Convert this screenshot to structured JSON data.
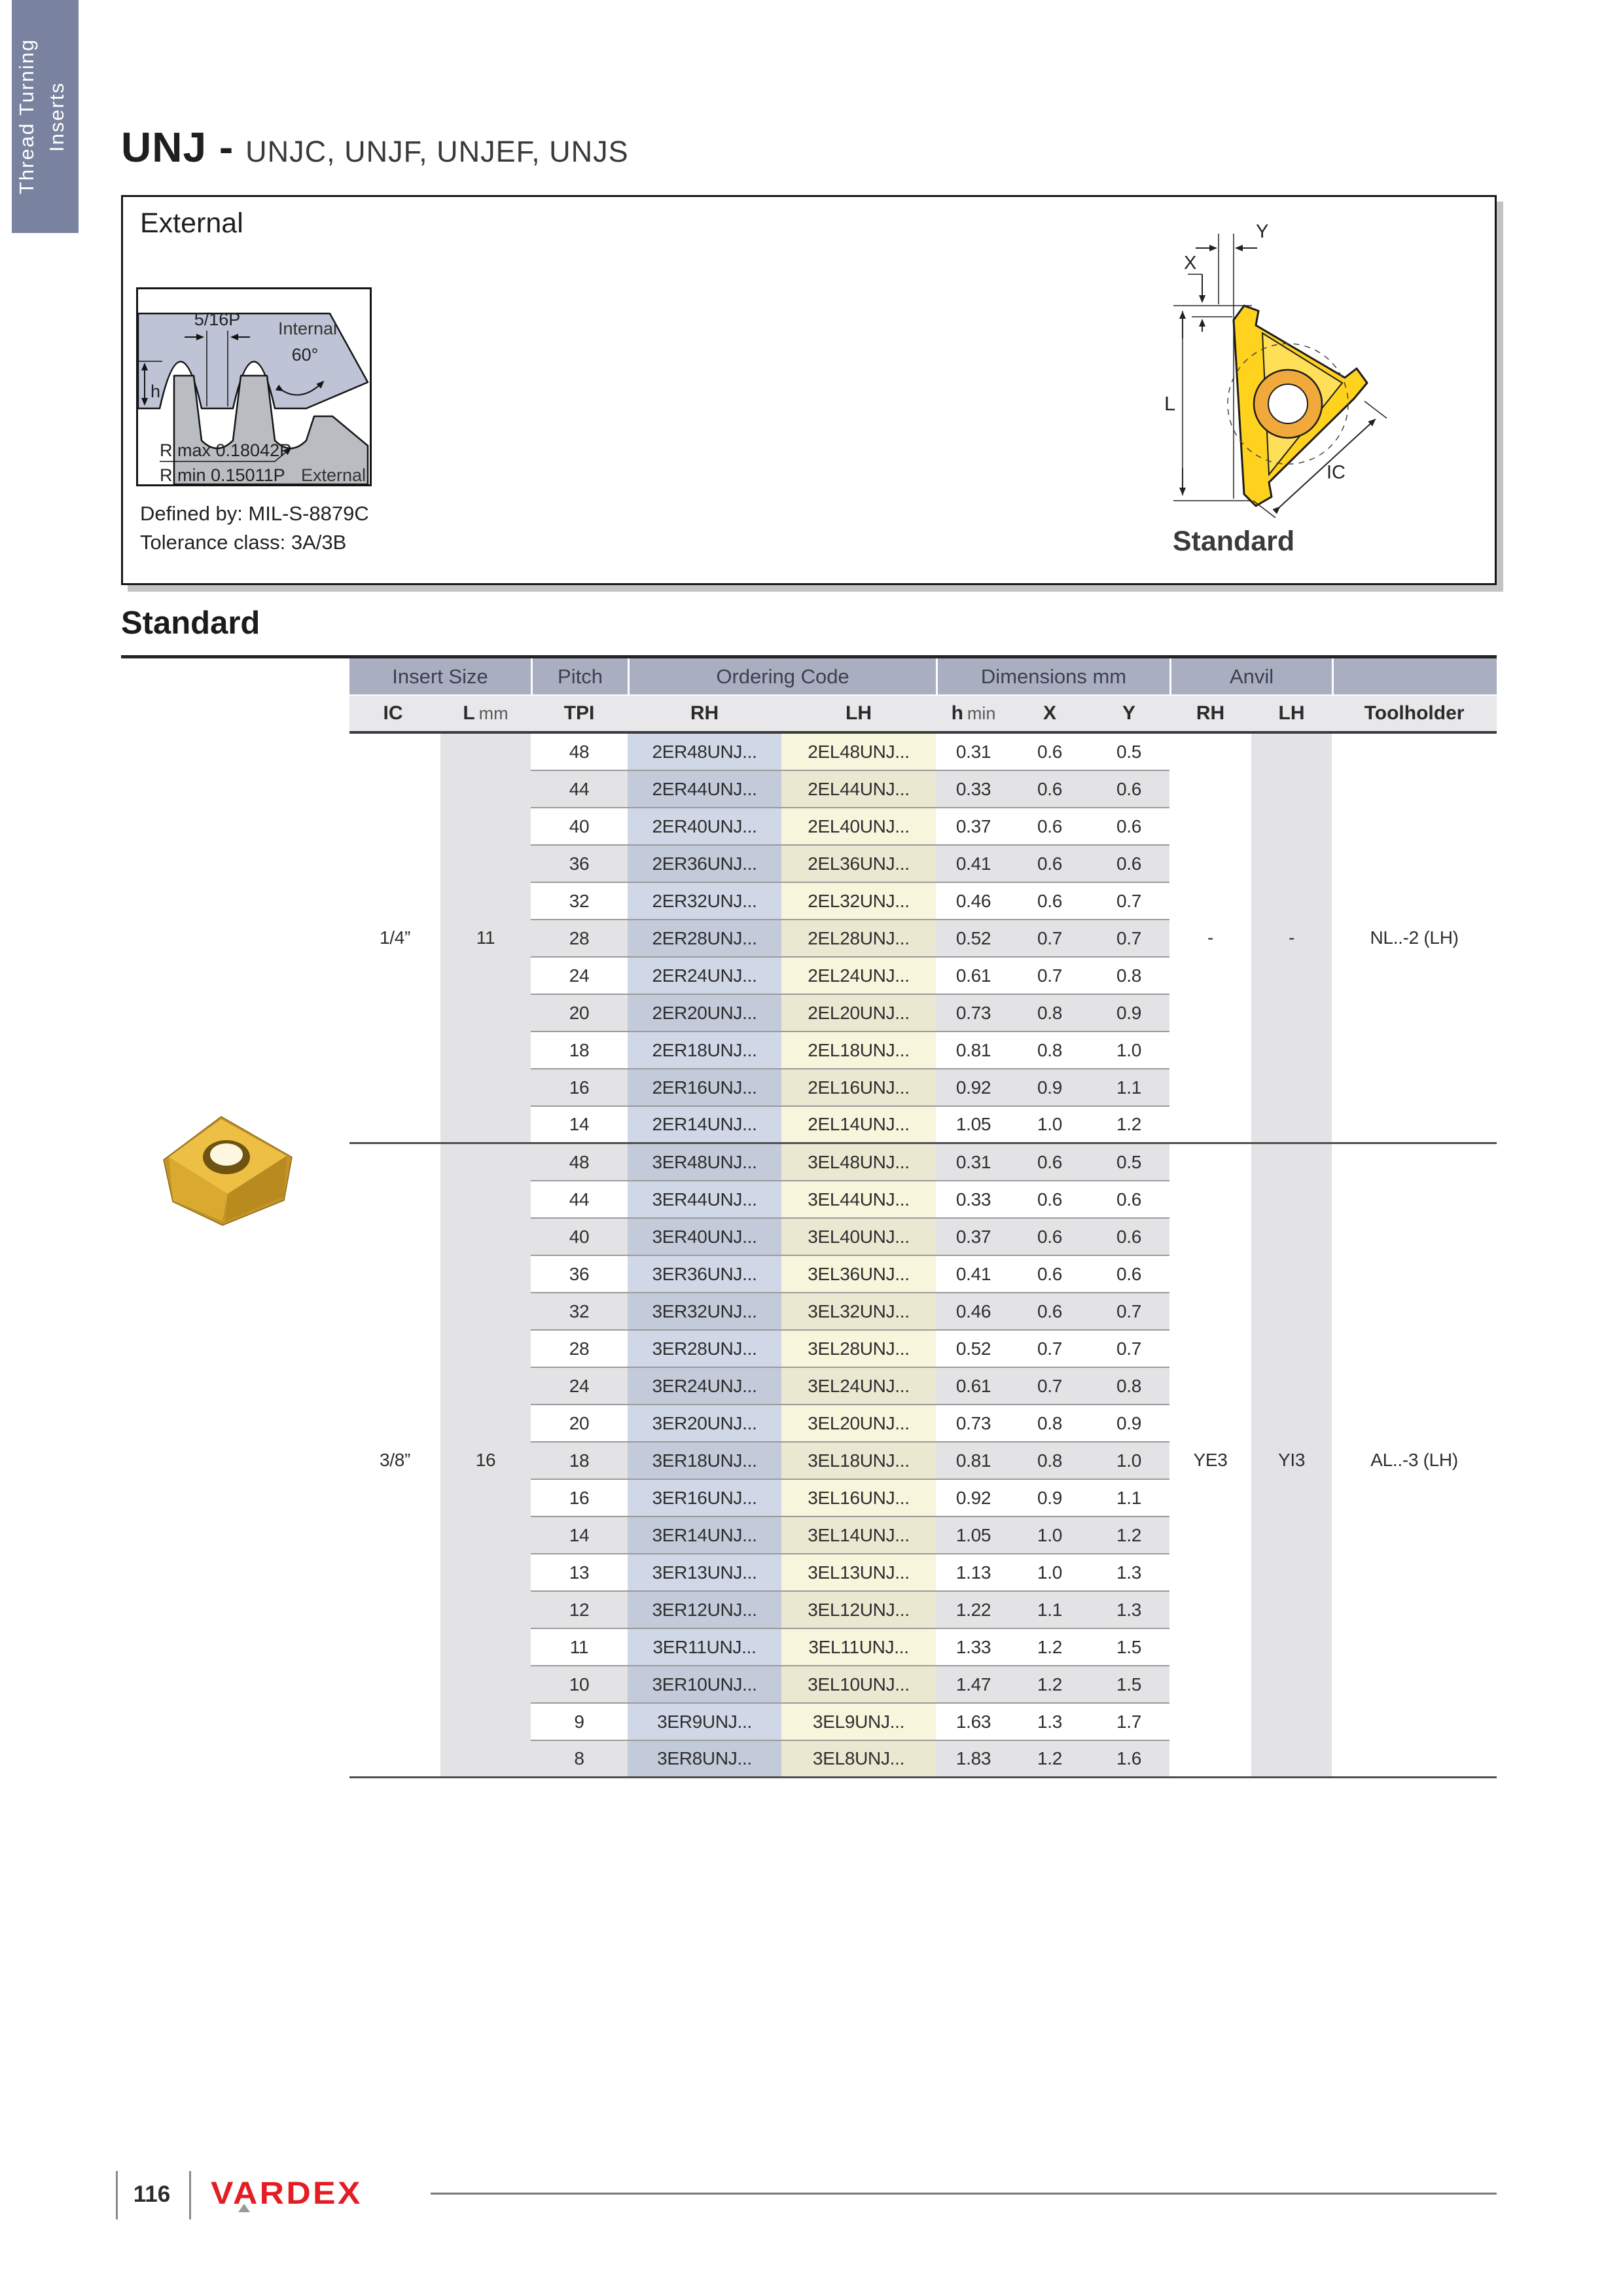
{
  "sidebar": {
    "line1": "Thread Turning",
    "line2": "Inserts"
  },
  "title": {
    "main": "UNJ -",
    "sub": "UNJC, UNJF, UNJEF, UNJS"
  },
  "external_box": {
    "label": "External",
    "defined_by": "Defined by: MIL-S-8879C",
    "tolerance_class": "Tolerance class: 3A/3B",
    "thread_diagram": {
      "pitch": "5/16P",
      "internal": "Internal",
      "angle": "60°",
      "height": "h",
      "r_max": "R max 0.18042P",
      "r_min": "R min 0.15011P",
      "external": "External"
    },
    "insert_diagram": {
      "dim_x": "X",
      "dim_y": "Y",
      "dim_l": "L",
      "dim_ic": "IC",
      "caption": "Standard"
    }
  },
  "section": {
    "title": "Standard"
  },
  "table": {
    "band": [
      {
        "label": "Insert Size"
      },
      {
        "label": "Pitch"
      },
      {
        "label": "Ordering Code"
      },
      {
        "label": "Dimensions mm"
      },
      {
        "label": "Anvil"
      },
      {
        "label": ""
      }
    ],
    "columns": [
      {
        "strong": "IC",
        "light": ""
      },
      {
        "strong": "L",
        "light": "mm"
      },
      {
        "strong": "TPI",
        "light": ""
      },
      {
        "strong": "RH",
        "light": ""
      },
      {
        "strong": "LH",
        "light": ""
      },
      {
        "strong": "h",
        "light": "min"
      },
      {
        "strong": "X",
        "light": ""
      },
      {
        "strong": "Y",
        "light": ""
      },
      {
        "strong": "RH",
        "light": ""
      },
      {
        "strong": "LH",
        "light": ""
      },
      {
        "strong": "Toolholder",
        "light": ""
      }
    ],
    "groups": [
      {
        "ic": "1/4”",
        "l_mm": "11",
        "anvil_rh": "-",
        "anvil_lh": "-",
        "toolholder": "NL..-2 (LH)",
        "rows": [
          {
            "tpi": "48",
            "rh": "2ER48UNJ...",
            "lh": "2EL48UNJ...",
            "h_min": "0.31",
            "x": "0.6",
            "y": "0.5"
          },
          {
            "tpi": "44",
            "rh": "2ER44UNJ...",
            "lh": "2EL44UNJ...",
            "h_min": "0.33",
            "x": "0.6",
            "y": "0.6"
          },
          {
            "tpi": "40",
            "rh": "2ER40UNJ...",
            "lh": "2EL40UNJ...",
            "h_min": "0.37",
            "x": "0.6",
            "y": "0.6"
          },
          {
            "tpi": "36",
            "rh": "2ER36UNJ...",
            "lh": "2EL36UNJ...",
            "h_min": "0.41",
            "x": "0.6",
            "y": "0.6"
          },
          {
            "tpi": "32",
            "rh": "2ER32UNJ...",
            "lh": "2EL32UNJ...",
            "h_min": "0.46",
            "x": "0.6",
            "y": "0.7"
          },
          {
            "tpi": "28",
            "rh": "2ER28UNJ...",
            "lh": "2EL28UNJ...",
            "h_min": "0.52",
            "x": "0.7",
            "y": "0.7"
          },
          {
            "tpi": "24",
            "rh": "2ER24UNJ...",
            "lh": "2EL24UNJ...",
            "h_min": "0.61",
            "x": "0.7",
            "y": "0.8"
          },
          {
            "tpi": "20",
            "rh": "2ER20UNJ...",
            "lh": "2EL20UNJ...",
            "h_min": "0.73",
            "x": "0.8",
            "y": "0.9"
          },
          {
            "tpi": "18",
            "rh": "2ER18UNJ...",
            "lh": "2EL18UNJ...",
            "h_min": "0.81",
            "x": "0.8",
            "y": "1.0"
          },
          {
            "tpi": "16",
            "rh": "2ER16UNJ...",
            "lh": "2EL16UNJ...",
            "h_min": "0.92",
            "x": "0.9",
            "y": "1.1"
          },
          {
            "tpi": "14",
            "rh": "2ER14UNJ...",
            "lh": "2EL14UNJ...",
            "h_min": "1.05",
            "x": "1.0",
            "y": "1.2"
          }
        ]
      },
      {
        "ic": "3/8”",
        "l_mm": "16",
        "anvil_rh": "YE3",
        "anvil_lh": "YI3",
        "toolholder": "AL..-3 (LH)",
        "rows": [
          {
            "tpi": "48",
            "rh": "3ER48UNJ...",
            "lh": "3EL48UNJ...",
            "h_min": "0.31",
            "x": "0.6",
            "y": "0.5"
          },
          {
            "tpi": "44",
            "rh": "3ER44UNJ...",
            "lh": "3EL44UNJ...",
            "h_min": "0.33",
            "x": "0.6",
            "y": "0.6"
          },
          {
            "tpi": "40",
            "rh": "3ER40UNJ...",
            "lh": "3EL40UNJ...",
            "h_min": "0.37",
            "x": "0.6",
            "y": "0.6"
          },
          {
            "tpi": "36",
            "rh": "3ER36UNJ...",
            "lh": "3EL36UNJ...",
            "h_min": "0.41",
            "x": "0.6",
            "y": "0.6"
          },
          {
            "tpi": "32",
            "rh": "3ER32UNJ...",
            "lh": "3EL32UNJ...",
            "h_min": "0.46",
            "x": "0.6",
            "y": "0.7"
          },
          {
            "tpi": "28",
            "rh": "3ER28UNJ...",
            "lh": "3EL28UNJ...",
            "h_min": "0.52",
            "x": "0.7",
            "y": "0.7"
          },
          {
            "tpi": "24",
            "rh": "3ER24UNJ...",
            "lh": "3EL24UNJ...",
            "h_min": "0.61",
            "x": "0.7",
            "y": "0.8"
          },
          {
            "tpi": "20",
            "rh": "3ER20UNJ...",
            "lh": "3EL20UNJ...",
            "h_min": "0.73",
            "x": "0.8",
            "y": "0.9"
          },
          {
            "tpi": "18",
            "rh": "3ER18UNJ...",
            "lh": "3EL18UNJ...",
            "h_min": "0.81",
            "x": "0.8",
            "y": "1.0"
          },
          {
            "tpi": "16",
            "rh": "3ER16UNJ...",
            "lh": "3EL16UNJ...",
            "h_min": "0.92",
            "x": "0.9",
            "y": "1.1"
          },
          {
            "tpi": "14",
            "rh": "3ER14UNJ...",
            "lh": "3EL14UNJ...",
            "h_min": "1.05",
            "x": "1.0",
            "y": "1.2"
          },
          {
            "tpi": "13",
            "rh": "3ER13UNJ...",
            "lh": "3EL13UNJ...",
            "h_min": "1.13",
            "x": "1.0",
            "y": "1.3"
          },
          {
            "tpi": "12",
            "rh": "3ER12UNJ...",
            "lh": "3EL12UNJ...",
            "h_min": "1.22",
            "x": "1.1",
            "y": "1.3"
          },
          {
            "tpi": "11",
            "rh": "3ER11UNJ...",
            "lh": "3EL11UNJ...",
            "h_min": "1.33",
            "x": "1.2",
            "y": "1.5"
          },
          {
            "tpi": "10",
            "rh": "3ER10UNJ...",
            "lh": "3EL10UNJ...",
            "h_min": "1.47",
            "x": "1.2",
            "y": "1.5"
          },
          {
            "tpi": "9",
            "rh": "3ER9UNJ...",
            "lh": "3EL9UNJ...",
            "h_min": "1.63",
            "x": "1.3",
            "y": "1.7"
          },
          {
            "tpi": "8",
            "rh": "3ER8UNJ...",
            "lh": "3EL8UNJ...",
            "h_min": "1.83",
            "x": "1.2",
            "y": "1.6"
          }
        ]
      }
    ]
  },
  "footer": {
    "page_number": "116",
    "brand": "VARDEX"
  },
  "colors": {
    "sidebar": "#79829f",
    "header_band": "#a9aec1",
    "stripe_gray": "#e3e3e5",
    "rh_column_blue": "#d0d7e6",
    "lh_column_cream": "#f8f5dd",
    "brand_red": "#e41d25",
    "insert_yellow": "#ffd21e"
  }
}
